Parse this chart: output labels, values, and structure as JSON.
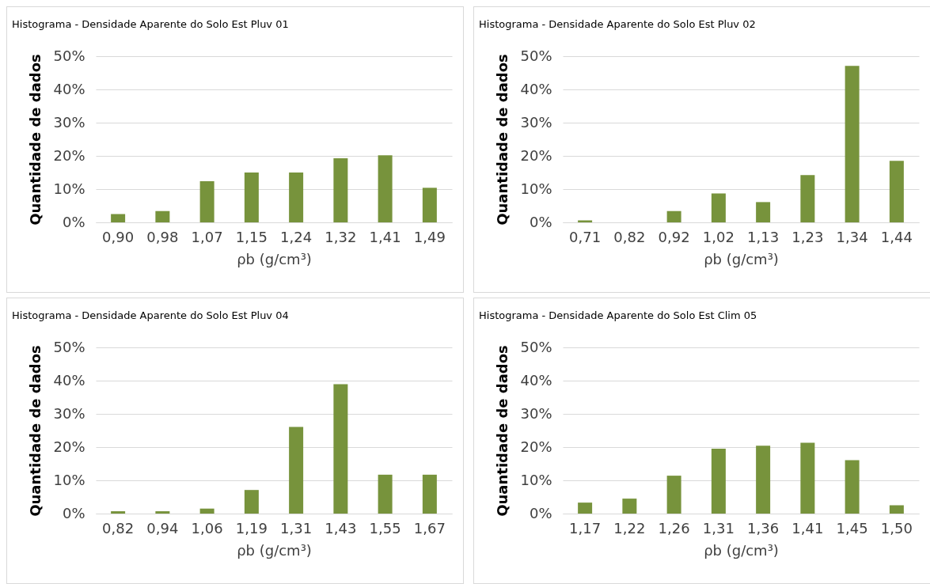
{
  "chart_data": [
    {
      "type": "bar",
      "title": "Histograma - Densidade Aparente do Solo Est Pluv 01",
      "xlabel": "ρb (g/cm³)",
      "ylabel": "Quantidade de dados",
      "categories": [
        "0,90",
        "0,98",
        "1,07",
        "1,15",
        "1,24",
        "1,32",
        "1,41",
        "1,49"
      ],
      "values": [
        2.5,
        3.4,
        12.4,
        15.0,
        15.0,
        19.3,
        20.2,
        10.4
      ],
      "color": "#77933c",
      "ylim": [
        0,
        50
      ],
      "yticks": [
        {
          "value": 0,
          "label": "0%"
        },
        {
          "value": 10,
          "label": "10%"
        },
        {
          "value": 20,
          "label": "20%"
        },
        {
          "value": 30,
          "label": "30%"
        },
        {
          "value": 40,
          "label": "40%"
        },
        {
          "value": 50,
          "label": "50%"
        }
      ],
      "grid": "y"
    },
    {
      "type": "bar",
      "title": "Histograma - Densidade Aparente do Solo Est Pluv 02",
      "xlabel": "ρb (g/cm³)",
      "ylabel": "Quantidade de dados",
      "categories": [
        "0,71",
        "0,82",
        "0,92",
        "1,02",
        "1,13",
        "1,23",
        "1,34",
        "1,44"
      ],
      "values": [
        0.6,
        0,
        3.4,
        8.7,
        6.1,
        14.2,
        47.1,
        18.5
      ],
      "color": "#77933c",
      "ylim": [
        0,
        50
      ],
      "yticks": [
        {
          "value": 0,
          "label": "0%"
        },
        {
          "value": 10,
          "label": "10%"
        },
        {
          "value": 20,
          "label": "20%"
        },
        {
          "value": 30,
          "label": "30%"
        },
        {
          "value": 40,
          "label": "40%"
        },
        {
          "value": 50,
          "label": "50%"
        }
      ],
      "grid": "y"
    },
    {
      "type": "bar",
      "title": "Histograma - Densidade Aparente do Solo Est Pluv 04",
      "xlabel": "ρb (g/cm³)",
      "ylabel": "Quantidade de dados",
      "categories": [
        "0,82",
        "0,94",
        "1,06",
        "1,19",
        "1,31",
        "1,43",
        "1,55",
        "1,67"
      ],
      "values": [
        0.7,
        0.7,
        1.5,
        7.1,
        26.1,
        38.9,
        11.7,
        11.7
      ],
      "color": "#77933c",
      "ylim": [
        0,
        50
      ],
      "yticks": [
        {
          "value": 0,
          "label": "0%"
        },
        {
          "value": 10,
          "label": "10%"
        },
        {
          "value": 20,
          "label": "20%"
        },
        {
          "value": 30,
          "label": "30%"
        },
        {
          "value": 40,
          "label": "40%"
        },
        {
          "value": 50,
          "label": "50%"
        }
      ],
      "grid": "y"
    },
    {
      "type": "bar",
      "title": "Histograma - Densidade Aparente do Solo Est Clim 05",
      "xlabel": "ρb (g/cm³)",
      "ylabel": "Quantidade de dados",
      "categories": [
        "1,17",
        "1,22",
        "1,26",
        "1,31",
        "1,36",
        "1,41",
        "1,45",
        "1,50"
      ],
      "values": [
        3.3,
        4.5,
        11.4,
        19.5,
        20.4,
        21.3,
        16.1,
        2.5
      ],
      "color": "#77933c",
      "ylim": [
        0,
        50
      ],
      "yticks": [
        {
          "value": 0,
          "label": "0%"
        },
        {
          "value": 10,
          "label": "10%"
        },
        {
          "value": 20,
          "label": "20%"
        },
        {
          "value": 30,
          "label": "30%"
        },
        {
          "value": 40,
          "label": "40%"
        },
        {
          "value": 50,
          "label": "50%"
        }
      ],
      "grid": "y"
    }
  ]
}
